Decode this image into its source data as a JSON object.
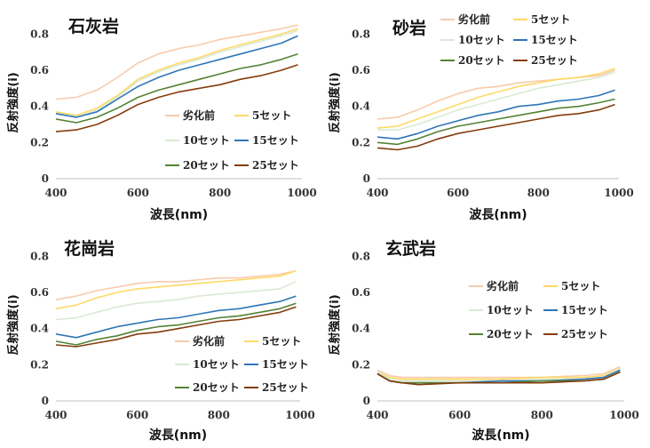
{
  "chart_data": [
    {
      "type": "line",
      "title": "石灰岩",
      "xlabel": "波長(nm)",
      "ylabel": "反射強度(i)",
      "xlim": [
        400,
        1000
      ],
      "ylim": [
        0,
        0.9
      ],
      "xticks": [
        "400",
        "600",
        "800",
        "1000"
      ],
      "yticks": [
        "0",
        "0.2",
        "0.4",
        "0.6",
        "0.8"
      ],
      "grid": false,
      "legend_position": "lower-right",
      "series": [
        {
          "name": "劣化前",
          "color": "#f8cbad",
          "x": [
            400,
            450,
            500,
            550,
            600,
            650,
            700,
            750,
            800,
            850,
            900,
            950,
            990
          ],
          "y": [
            0.44,
            0.45,
            0.49,
            0.56,
            0.64,
            0.69,
            0.72,
            0.74,
            0.77,
            0.79,
            0.81,
            0.83,
            0.85
          ]
        },
        {
          "name": "5セット",
          "color": "#ffd966",
          "x": [
            400,
            450,
            500,
            550,
            600,
            650,
            700,
            750,
            800,
            850,
            900,
            950,
            990
          ],
          "y": [
            0.37,
            0.35,
            0.39,
            0.46,
            0.55,
            0.6,
            0.64,
            0.67,
            0.71,
            0.74,
            0.77,
            0.8,
            0.83
          ]
        },
        {
          "name": "10セット",
          "color": "#d9ead3",
          "x": [
            400,
            450,
            500,
            550,
            600,
            650,
            700,
            750,
            800,
            850,
            900,
            950,
            990
          ],
          "y": [
            0.36,
            0.34,
            0.38,
            0.45,
            0.54,
            0.59,
            0.63,
            0.66,
            0.7,
            0.73,
            0.76,
            0.79,
            0.82
          ]
        },
        {
          "name": "15セット",
          "color": "#2e75b6",
          "x": [
            400,
            450,
            500,
            550,
            600,
            650,
            700,
            750,
            800,
            850,
            900,
            950,
            990
          ],
          "y": [
            0.36,
            0.34,
            0.37,
            0.44,
            0.51,
            0.56,
            0.6,
            0.63,
            0.66,
            0.69,
            0.72,
            0.75,
            0.79
          ]
        },
        {
          "name": "20セット",
          "color": "#548235",
          "x": [
            400,
            450,
            500,
            550,
            600,
            650,
            700,
            750,
            800,
            850,
            900,
            950,
            990
          ],
          "y": [
            0.33,
            0.31,
            0.34,
            0.39,
            0.45,
            0.49,
            0.52,
            0.55,
            0.58,
            0.61,
            0.63,
            0.66,
            0.69
          ]
        },
        {
          "name": "25セット",
          "color": "#843c0c",
          "x": [
            400,
            450,
            500,
            550,
            600,
            650,
            700,
            750,
            800,
            850,
            900,
            950,
            990
          ],
          "y": [
            0.26,
            0.27,
            0.3,
            0.35,
            0.41,
            0.45,
            0.48,
            0.5,
            0.52,
            0.55,
            0.57,
            0.6,
            0.63
          ]
        }
      ]
    },
    {
      "type": "line",
      "title": "砂岩",
      "xlabel": "波長(nm)",
      "ylabel": "反射強度(i)",
      "xlim": [
        400,
        1000
      ],
      "ylim": [
        0,
        0.9
      ],
      "xticks": [
        "400",
        "600",
        "800",
        "1000"
      ],
      "yticks": [
        "0",
        "0.2",
        "0.4",
        "0.6",
        "0.8"
      ],
      "grid": false,
      "legend_position": "top-right",
      "series": [
        {
          "name": "劣化前",
          "color": "#f8cbad",
          "x": [
            400,
            450,
            500,
            550,
            600,
            650,
            700,
            750,
            800,
            850,
            900,
            950,
            990
          ],
          "y": [
            0.33,
            0.34,
            0.38,
            0.43,
            0.47,
            0.5,
            0.51,
            0.53,
            0.54,
            0.55,
            0.56,
            0.57,
            0.6
          ]
        },
        {
          "name": "5セット",
          "color": "#ffd966",
          "x": [
            400,
            450,
            500,
            550,
            600,
            650,
            700,
            750,
            800,
            850,
            900,
            950,
            990
          ],
          "y": [
            0.28,
            0.29,
            0.33,
            0.37,
            0.41,
            0.45,
            0.48,
            0.51,
            0.53,
            0.55,
            0.56,
            0.58,
            0.61
          ]
        },
        {
          "name": "10セット",
          "color": "#d9ead3",
          "x": [
            400,
            450,
            500,
            550,
            600,
            650,
            700,
            750,
            800,
            850,
            900,
            950,
            990
          ],
          "y": [
            0.27,
            0.27,
            0.3,
            0.34,
            0.38,
            0.41,
            0.44,
            0.47,
            0.5,
            0.52,
            0.54,
            0.56,
            0.59
          ]
        },
        {
          "name": "15セット",
          "color": "#2e75b6",
          "x": [
            400,
            450,
            500,
            550,
            600,
            650,
            700,
            750,
            800,
            850,
            900,
            950,
            990
          ],
          "y": [
            0.23,
            0.22,
            0.25,
            0.29,
            0.32,
            0.35,
            0.37,
            0.4,
            0.41,
            0.43,
            0.44,
            0.46,
            0.49
          ]
        },
        {
          "name": "20セット",
          "color": "#548235",
          "x": [
            400,
            450,
            500,
            550,
            600,
            650,
            700,
            750,
            800,
            850,
            900,
            950,
            990
          ],
          "y": [
            0.2,
            0.19,
            0.22,
            0.26,
            0.29,
            0.31,
            0.33,
            0.35,
            0.37,
            0.39,
            0.4,
            0.42,
            0.44
          ]
        },
        {
          "name": "25セット",
          "color": "#843c0c",
          "x": [
            400,
            450,
            500,
            550,
            600,
            650,
            700,
            750,
            800,
            850,
            900,
            950,
            990
          ],
          "y": [
            0.17,
            0.16,
            0.18,
            0.22,
            0.25,
            0.27,
            0.29,
            0.31,
            0.33,
            0.35,
            0.36,
            0.38,
            0.41
          ]
        }
      ]
    },
    {
      "type": "line",
      "title": "花崗岩",
      "xlabel": "波長(nm)",
      "ylabel": "反射強度(i)",
      "xlim": [
        400,
        1000
      ],
      "ylim": [
        0,
        0.9
      ],
      "xticks": [
        "400",
        "600",
        "800",
        "1000"
      ],
      "yticks": [
        "0",
        "0.2",
        "0.4",
        "0.6",
        "0.8"
      ],
      "grid": false,
      "legend_position": "lower-right",
      "series": [
        {
          "name": "劣化前",
          "color": "#f8cbad",
          "x": [
            400,
            450,
            500,
            550,
            600,
            650,
            700,
            750,
            800,
            850,
            900,
            950,
            990
          ],
          "y": [
            0.56,
            0.58,
            0.61,
            0.63,
            0.65,
            0.66,
            0.66,
            0.67,
            0.68,
            0.68,
            0.69,
            0.7,
            0.72
          ]
        },
        {
          "name": "5セット",
          "color": "#ffd966",
          "x": [
            400,
            450,
            500,
            550,
            600,
            650,
            700,
            750,
            800,
            850,
            900,
            950,
            990
          ],
          "y": [
            0.51,
            0.53,
            0.57,
            0.6,
            0.62,
            0.63,
            0.64,
            0.65,
            0.66,
            0.67,
            0.68,
            0.69,
            0.72
          ]
        },
        {
          "name": "10セット",
          "color": "#d9ead3",
          "x": [
            400,
            450,
            500,
            550,
            600,
            650,
            700,
            750,
            800,
            850,
            900,
            950,
            990
          ],
          "y": [
            0.45,
            0.46,
            0.49,
            0.52,
            0.54,
            0.55,
            0.56,
            0.58,
            0.59,
            0.6,
            0.61,
            0.62,
            0.66
          ]
        },
        {
          "name": "15セット",
          "color": "#2e75b6",
          "x": [
            400,
            450,
            500,
            550,
            600,
            650,
            700,
            750,
            800,
            850,
            900,
            950,
            990
          ],
          "y": [
            0.37,
            0.35,
            0.38,
            0.41,
            0.43,
            0.45,
            0.46,
            0.48,
            0.5,
            0.51,
            0.53,
            0.55,
            0.58
          ]
        },
        {
          "name": "20セット",
          "color": "#548235",
          "x": [
            400,
            450,
            500,
            550,
            600,
            650,
            700,
            750,
            800,
            850,
            900,
            950,
            990
          ],
          "y": [
            0.33,
            0.31,
            0.34,
            0.36,
            0.39,
            0.41,
            0.42,
            0.44,
            0.46,
            0.47,
            0.49,
            0.51,
            0.54
          ]
        },
        {
          "name": "25セット",
          "color": "#843c0c",
          "x": [
            400,
            450,
            500,
            550,
            600,
            650,
            700,
            750,
            800,
            850,
            900,
            950,
            990
          ],
          "y": [
            0.31,
            0.3,
            0.32,
            0.34,
            0.37,
            0.38,
            0.4,
            0.42,
            0.44,
            0.45,
            0.47,
            0.49,
            0.52
          ]
        }
      ]
    },
    {
      "type": "line",
      "title": "玄武岩",
      "xlabel": "波長(nm)",
      "ylabel": "反射強度(i)",
      "xlim": [
        400,
        1000
      ],
      "ylim": [
        0,
        0.9
      ],
      "xticks": [
        "400",
        "600",
        "800",
        "1000"
      ],
      "yticks": [
        "0",
        "0.2",
        "0.4",
        "0.6",
        "0.8"
      ],
      "grid": false,
      "legend_position": "center",
      "series": [
        {
          "name": "劣化前",
          "color": "#f8cbad",
          "x": [
            400,
            430,
            460,
            500,
            600,
            700,
            800,
            900,
            950,
            990
          ],
          "y": [
            0.17,
            0.14,
            0.13,
            0.13,
            0.13,
            0.13,
            0.13,
            0.14,
            0.15,
            0.19
          ]
        },
        {
          "name": "5セット",
          "color": "#ffd966",
          "x": [
            400,
            430,
            460,
            500,
            600,
            700,
            800,
            900,
            950,
            990
          ],
          "y": [
            0.16,
            0.13,
            0.12,
            0.12,
            0.12,
            0.12,
            0.13,
            0.13,
            0.14,
            0.18
          ]
        },
        {
          "name": "10セット",
          "color": "#d9ead3",
          "x": [
            400,
            430,
            460,
            500,
            600,
            700,
            800,
            900,
            950,
            990
          ],
          "y": [
            0.16,
            0.12,
            0.11,
            0.11,
            0.11,
            0.11,
            0.12,
            0.12,
            0.13,
            0.18
          ]
        },
        {
          "name": "15セット",
          "color": "#2e75b6",
          "x": [
            400,
            430,
            460,
            500,
            600,
            700,
            800,
            900,
            950,
            990
          ],
          "y": [
            0.15,
            0.11,
            0.1,
            0.1,
            0.1,
            0.11,
            0.11,
            0.12,
            0.13,
            0.17
          ]
        },
        {
          "name": "20セット",
          "color": "#548235",
          "x": [
            400,
            430,
            460,
            500,
            600,
            700,
            800,
            900,
            950,
            990
          ],
          "y": [
            0.15,
            0.11,
            0.1,
            0.1,
            0.1,
            0.1,
            0.11,
            0.11,
            0.12,
            0.16
          ]
        },
        {
          "name": "25セット",
          "color": "#843c0c",
          "x": [
            400,
            430,
            460,
            500,
            600,
            700,
            800,
            900,
            950,
            990
          ],
          "y": [
            0.15,
            0.11,
            0.1,
            0.09,
            0.1,
            0.1,
            0.1,
            0.11,
            0.12,
            0.16
          ]
        }
      ]
    }
  ]
}
